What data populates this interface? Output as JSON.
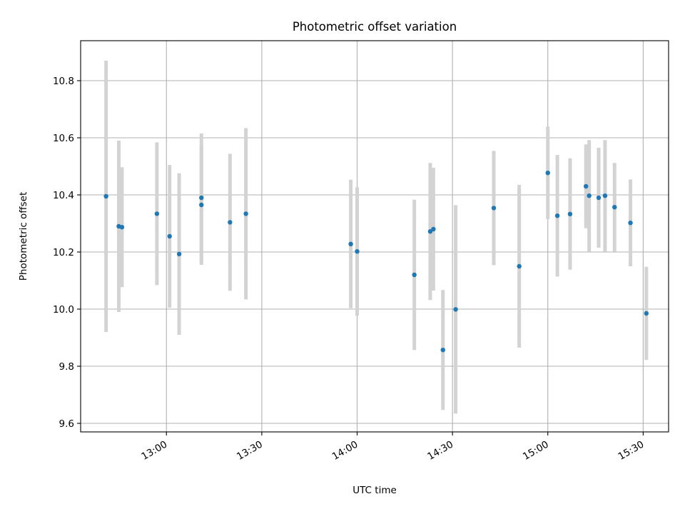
{
  "chart_data": {
    "type": "scatter",
    "title": "Photometric offset variation",
    "xlabel": "UTC time",
    "ylabel": "Photometric offset",
    "x_ticks": [
      "13:00",
      "13:30",
      "14:00",
      "14:30",
      "15:00",
      "15:30"
    ],
    "y_ticks": [
      "9.6",
      "9.8",
      "10.0",
      "10.2",
      "10.4",
      "10.6",
      "10.8"
    ],
    "xlim": [
      "12:33",
      "15:38"
    ],
    "ylim": [
      9.57,
      10.94
    ],
    "grid": true,
    "colors": {
      "marker": "#1f77b4",
      "errorbar": "#d3d3d3",
      "grid": "#b0b0b0"
    },
    "points": [
      {
        "t": "12:41",
        "y": 10.395,
        "err": 0.475
      },
      {
        "t": "12:45",
        "y": 10.29,
        "err": 0.3
      },
      {
        "t": "12:46",
        "y": 10.287,
        "err": 0.21
      },
      {
        "t": "12:57",
        "y": 10.334,
        "err": 0.25
      },
      {
        "t": "13:01",
        "y": 10.255,
        "err": 0.25
      },
      {
        "t": "13:04",
        "y": 10.193,
        "err": 0.283
      },
      {
        "t": "13:11",
        "y": 10.39,
        "err": 0.225
      },
      {
        "t": "13:11",
        "y": 10.365,
        "err": 0.21
      },
      {
        "t": "13:20",
        "y": 10.304,
        "err": 0.24
      },
      {
        "t": "13:25",
        "y": 10.334,
        "err": 0.3
      },
      {
        "t": "13:58",
        "y": 10.228,
        "err": 0.225
      },
      {
        "t": "14:00",
        "y": 10.202,
        "err": 0.225
      },
      {
        "t": "14:18",
        "y": 10.12,
        "err": 0.263
      },
      {
        "t": "14:23",
        "y": 10.272,
        "err": 0.24
      },
      {
        "t": "14:24",
        "y": 10.28,
        "err": 0.215
      },
      {
        "t": "14:27",
        "y": 9.857,
        "err": 0.21
      },
      {
        "t": "14:31",
        "y": 9.999,
        "err": 0.365
      },
      {
        "t": "14:43",
        "y": 10.354,
        "err": 0.2
      },
      {
        "t": "14:51",
        "y": 10.15,
        "err": 0.285
      },
      {
        "t": "15:00",
        "y": 10.477,
        "err": 0.162
      },
      {
        "t": "15:03",
        "y": 10.327,
        "err": 0.213
      },
      {
        "t": "15:07",
        "y": 10.333,
        "err": 0.195
      },
      {
        "t": "15:12",
        "y": 10.43,
        "err": 0.147
      },
      {
        "t": "15:13",
        "y": 10.397,
        "err": 0.195
      },
      {
        "t": "15:16",
        "y": 10.39,
        "err": 0.175
      },
      {
        "t": "15:18",
        "y": 10.397,
        "err": 0.195
      },
      {
        "t": "15:21",
        "y": 10.357,
        "err": 0.155
      },
      {
        "t": "15:26",
        "y": 10.302,
        "err": 0.152
      },
      {
        "t": "15:31",
        "y": 9.985,
        "err": 0.163
      }
    ]
  }
}
